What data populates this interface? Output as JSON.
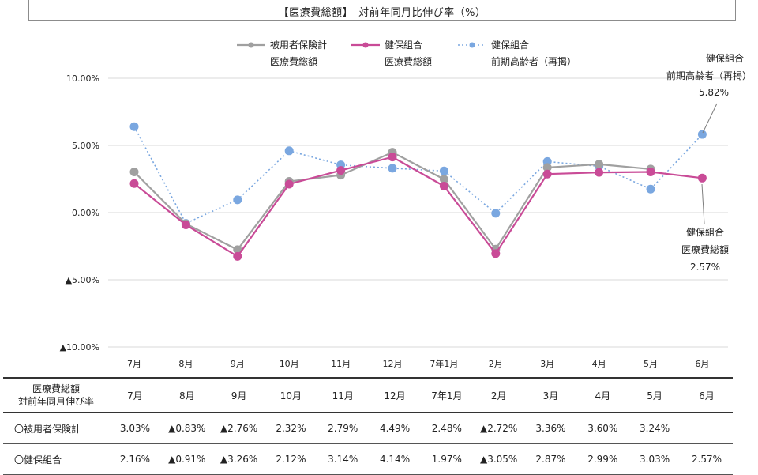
{
  "title": "【医療費総額】　対前年同月比伸び率（%）",
  "chart_data": {
    "type": "line",
    "categories": [
      "7月",
      "8月",
      "9月",
      "10月",
      "11月",
      "12月",
      "7年1月",
      "2月",
      "3月",
      "4月",
      "5月",
      "6月"
    ],
    "ylim": [
      -10,
      10
    ],
    "yticks": [
      "10.00%",
      "5.00%",
      "0.00%",
      "▲5.00%",
      "▲10.00%"
    ],
    "ytick_values": [
      10,
      5,
      0,
      -5,
      -10
    ],
    "grid": true,
    "legend_position": "top",
    "series": [
      {
        "name_line1": "被用者保険計",
        "name_line2": "医療費総額",
        "color": "#a0a0a0",
        "dashed": false,
        "values": [
          3.03,
          -0.83,
          -2.76,
          2.32,
          2.79,
          4.49,
          2.48,
          -2.72,
          3.36,
          3.6,
          3.24,
          null
        ]
      },
      {
        "name_line1": "健保組合",
        "name_line2": "医療費総額",
        "color": "#c94b97",
        "dashed": false,
        "values": [
          2.16,
          -0.91,
          -3.26,
          2.12,
          3.14,
          4.14,
          1.97,
          -3.05,
          2.87,
          2.99,
          3.03,
          2.57
        ]
      },
      {
        "name_line1": "健保組合",
        "name_line2": "前期高齢者（再掲）",
        "color": "#7aa7e0",
        "dashed": true,
        "values": [
          6.4,
          -0.8,
          0.95,
          4.6,
          3.55,
          3.3,
          3.1,
          -0.05,
          3.8,
          3.45,
          1.75,
          5.82
        ]
      }
    ],
    "annotations": [
      {
        "lines": [
          "健保組合",
          "前期高齢者（再掲）",
          "5.82%"
        ]
      },
      {
        "lines": [
          "健保組合",
          "医療費総額",
          "2.57%"
        ]
      }
    ]
  },
  "table": {
    "header_label_line1": "医療費総額",
    "header_label_line2": "対前年同月伸び率",
    "columns": [
      "7月",
      "8月",
      "9月",
      "10月",
      "11月",
      "12月",
      "7年1月",
      "2月",
      "3月",
      "4月",
      "5月",
      "6月"
    ],
    "rows": [
      {
        "label": "〇被用者保険計",
        "cells": [
          "3.03%",
          "▲0.83%",
          "▲2.76%",
          "2.32%",
          "2.79%",
          "4.49%",
          "2.48%",
          "▲2.72%",
          "3.36%",
          "3.60%",
          "3.24%",
          ""
        ]
      },
      {
        "label": "〇健保組合",
        "cells": [
          "2.16%",
          "▲0.91%",
          "▲3.26%",
          "2.12%",
          "3.14%",
          "4.14%",
          "1.97%",
          "▲3.05%",
          "2.87%",
          "2.99%",
          "3.03%",
          "2.57%"
        ]
      }
    ]
  }
}
